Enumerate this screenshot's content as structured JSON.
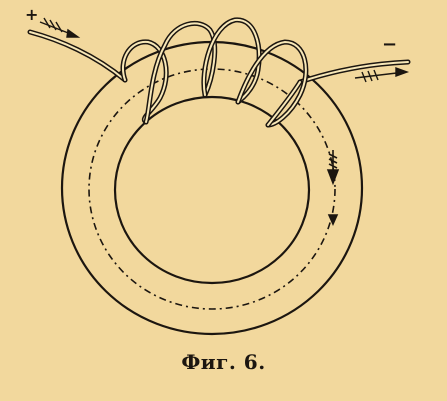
{
  "figure": {
    "caption": "Фиг. 6.",
    "terminal_positive": "+",
    "terminal_negative": "−",
    "colors": {
      "paper": "#f2d89d",
      "ink": "#1c1610",
      "wire_fill": "#f8e8b8"
    }
  }
}
